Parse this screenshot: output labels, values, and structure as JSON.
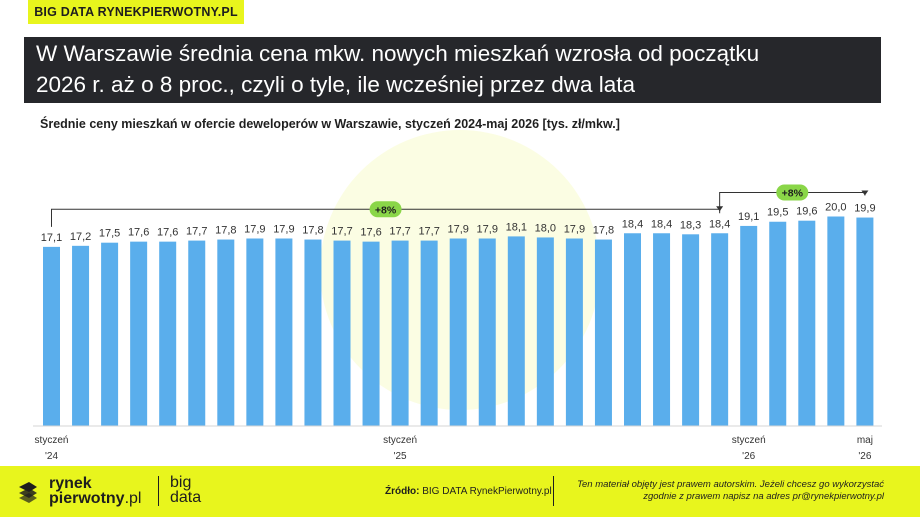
{
  "brand_tag": "BIG DATA RYNEKPIERWOTNY.PL",
  "title": {
    "line1": "W Warszawie średnia cena mkw. nowych mieszkań wzrosła od początku",
    "line2": "2026 r. aż o 8 proc., czyli o tyle, ile wcześniej przez dwa lata"
  },
  "subtitle": "Średnie ceny mieszkań w ofercie deweloperów w Warszawie, styczeń 2024-maj 2026 [tys. zł/mkw.]",
  "colors": {
    "bar": "#5aaeec",
    "accent": "#e8f51d",
    "badge": "#8ad648",
    "title_bg": "#26272b"
  },
  "chart_data": {
    "type": "bar",
    "values": [
      17.1,
      17.2,
      17.5,
      17.6,
      17.6,
      17.7,
      17.8,
      17.9,
      17.9,
      17.8,
      17.7,
      17.6,
      17.7,
      17.7,
      17.9,
      17.9,
      18.1,
      18.0,
      17.9,
      17.8,
      18.4,
      18.4,
      18.3,
      18.4,
      19.1,
      19.5,
      19.6,
      20.0,
      19.9
    ],
    "value_labels": [
      "17,1",
      "17,2",
      "17,5",
      "17,6",
      "17,6",
      "17,7",
      "17,8",
      "17,9",
      "17,9",
      "17,8",
      "17,7",
      "17,6",
      "17,7",
      "17,7",
      "17,9",
      "17,9",
      "18,1",
      "18,0",
      "17,9",
      "17,8",
      "18,4",
      "18,4",
      "18,3",
      "18,4",
      "19,1",
      "19,5",
      "19,6",
      "20,0",
      "19,9"
    ],
    "x_ticks": [
      {
        "index": 0,
        "line1": "styczeń",
        "line2": "'24"
      },
      {
        "index": 12,
        "line1": "styczeń",
        "line2": "'25"
      },
      {
        "index": 24,
        "line1": "styczeń",
        "line2": "'26"
      },
      {
        "index": 28,
        "line1": "maj",
        "line2": "'26"
      }
    ],
    "annotations": [
      {
        "from_index": 0,
        "to_index": 23,
        "label": "+8%"
      },
      {
        "from_index": 23,
        "to_index": 28,
        "label": "+8%"
      }
    ],
    "ylim": [
      0,
      20.0
    ],
    "grid": false,
    "legend": "none"
  },
  "footer": {
    "logo_line1": "rynek",
    "logo_line2": "pierwotny",
    "logo_suffix": ".pl",
    "bigdata_line1": "big",
    "bigdata_line2": "data",
    "source_label": "Źródło:",
    "source_text": "BIG DATA RynekPierwotny.pl",
    "notice_line1": "Ten materiał objęty jest prawem autorskim. Jeżeli chcesz go wykorzystać",
    "notice_line2": "zgodnie z prawem napisz na adres pr@rynekpierwotny.pl"
  }
}
